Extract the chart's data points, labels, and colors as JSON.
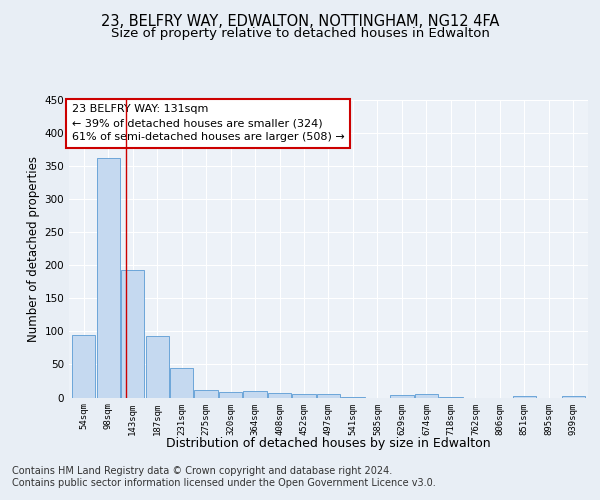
{
  "title1": "23, BELFRY WAY, EDWALTON, NOTTINGHAM, NG12 4FA",
  "title2": "Size of property relative to detached houses in Edwalton",
  "xlabel": "Distribution of detached houses by size in Edwalton",
  "ylabel": "Number of detached properties",
  "footer1": "Contains HM Land Registry data © Crown copyright and database right 2024.",
  "footer2": "Contains public sector information licensed under the Open Government Licence v3.0.",
  "annotation_line1": "23 BELFRY WAY: 131sqm",
  "annotation_line2": "← 39% of detached houses are smaller (324)",
  "annotation_line3": "61% of semi-detached houses are larger (508) →",
  "bar_categories": [
    "54sqm",
    "98sqm",
    "143sqm",
    "187sqm",
    "231sqm",
    "275sqm",
    "320sqm",
    "364sqm",
    "408sqm",
    "452sqm",
    "497sqm",
    "541sqm",
    "585sqm",
    "629sqm",
    "674sqm",
    "718sqm",
    "762sqm",
    "806sqm",
    "851sqm",
    "895sqm",
    "939sqm"
  ],
  "bar_values": [
    95,
    362,
    193,
    93,
    45,
    12,
    9,
    10,
    7,
    5,
    5,
    1,
    0,
    4,
    5,
    1,
    0,
    0,
    3,
    0,
    3
  ],
  "bar_color": "#c5d9f0",
  "bar_edge_color": "#5b9bd5",
  "property_line_x": 1.73,
  "property_line_color": "#cc0000",
  "ylim": [
    0,
    450
  ],
  "yticks": [
    0,
    50,
    100,
    150,
    200,
    250,
    300,
    350,
    400,
    450
  ],
  "bg_color": "#e8eef5",
  "plot_bg_color": "#edf2f8",
  "grid_color": "#ffffff",
  "annotation_box_color": "#ffffff",
  "annotation_box_edge": "#cc0000",
  "title1_fontsize": 10.5,
  "title2_fontsize": 9.5,
  "xlabel_fontsize": 9,
  "ylabel_fontsize": 8.5,
  "footer_fontsize": 7,
  "annotation_fontsize": 8
}
